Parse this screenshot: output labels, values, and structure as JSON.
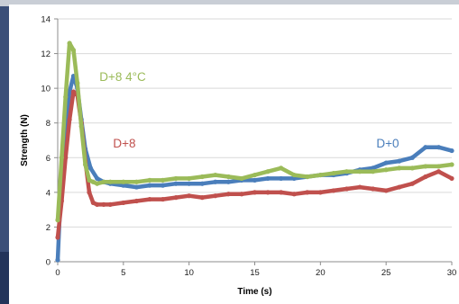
{
  "chart_data": {
    "type": "line",
    "xlabel": "Time (s)",
    "ylabel": "Strength (N)",
    "xlim": [
      0,
      30
    ],
    "ylim": [
      0,
      14
    ],
    "x_ticks": [
      0,
      5,
      10,
      15,
      20,
      25,
      30
    ],
    "y_ticks": [
      0,
      2,
      4,
      6,
      8,
      10,
      12,
      14
    ],
    "grid": "horizontal",
    "legend": "none",
    "series": [
      {
        "name": "D+0",
        "color": "#4a7ebb",
        "x": [
          0,
          0.3,
          0.6,
          0.9,
          1.2,
          1.5,
          1.8,
          2.1,
          2.5,
          3,
          3.5,
          4,
          5,
          6,
          7,
          8,
          9,
          10,
          11,
          12,
          13,
          14,
          15,
          16,
          17,
          18,
          19,
          20,
          21,
          22,
          23,
          24,
          25,
          26,
          27,
          28,
          29,
          30
        ],
        "y": [
          0.1,
          5.2,
          8.0,
          9.8,
          10.7,
          10.0,
          8.2,
          6.5,
          5.4,
          4.8,
          4.6,
          4.5,
          4.4,
          4.3,
          4.4,
          4.4,
          4.5,
          4.5,
          4.5,
          4.6,
          4.6,
          4.7,
          4.7,
          4.8,
          4.8,
          4.8,
          4.9,
          5.0,
          5.0,
          5.1,
          5.3,
          5.4,
          5.7,
          5.8,
          6.0,
          6.6,
          6.6,
          6.4
        ]
      },
      {
        "name": "D+8",
        "color": "#c0504d",
        "x": [
          0,
          0.3,
          0.6,
          0.9,
          1.2,
          1.5,
          1.8,
          2.1,
          2.4,
          2.7,
          3,
          3.5,
          4,
          5,
          6,
          7,
          8,
          9,
          10,
          11,
          12,
          13,
          14,
          15,
          16,
          17,
          18,
          19,
          20,
          21,
          22,
          23,
          24,
          25,
          26,
          27,
          28,
          29,
          30
        ],
        "y": [
          1.4,
          3.5,
          6.0,
          8.2,
          9.8,
          9.6,
          8.0,
          5.8,
          4.0,
          3.4,
          3.3,
          3.3,
          3.3,
          3.4,
          3.5,
          3.6,
          3.6,
          3.7,
          3.8,
          3.7,
          3.8,
          3.9,
          3.9,
          4.0,
          4.0,
          4.0,
          3.9,
          4.0,
          4.0,
          4.1,
          4.2,
          4.3,
          4.2,
          4.1,
          4.3,
          4.5,
          4.9,
          5.2,
          4.8
        ]
      },
      {
        "name": "D+8 4°C",
        "color": "#9bbb59",
        "x": [
          0,
          0.3,
          0.6,
          0.9,
          1.2,
          1.5,
          1.8,
          2.1,
          2.4,
          2.7,
          3,
          3.5,
          4,
          5,
          6,
          7,
          8,
          9,
          10,
          11,
          12,
          13,
          14,
          15,
          16,
          17,
          18,
          19,
          20,
          21,
          22,
          23,
          24,
          25,
          26,
          27,
          28,
          29,
          30
        ],
        "y": [
          2.4,
          6.0,
          9.5,
          12.6,
          12.2,
          10.3,
          7.8,
          5.6,
          4.7,
          4.6,
          4.5,
          4.6,
          4.6,
          4.6,
          4.6,
          4.7,
          4.7,
          4.8,
          4.8,
          4.9,
          5.0,
          4.9,
          4.8,
          5.0,
          5.2,
          5.4,
          5.0,
          4.9,
          5.0,
          5.1,
          5.2,
          5.2,
          5.2,
          5.3,
          5.4,
          5.4,
          5.5,
          5.5,
          5.6
        ]
      }
    ]
  }
}
